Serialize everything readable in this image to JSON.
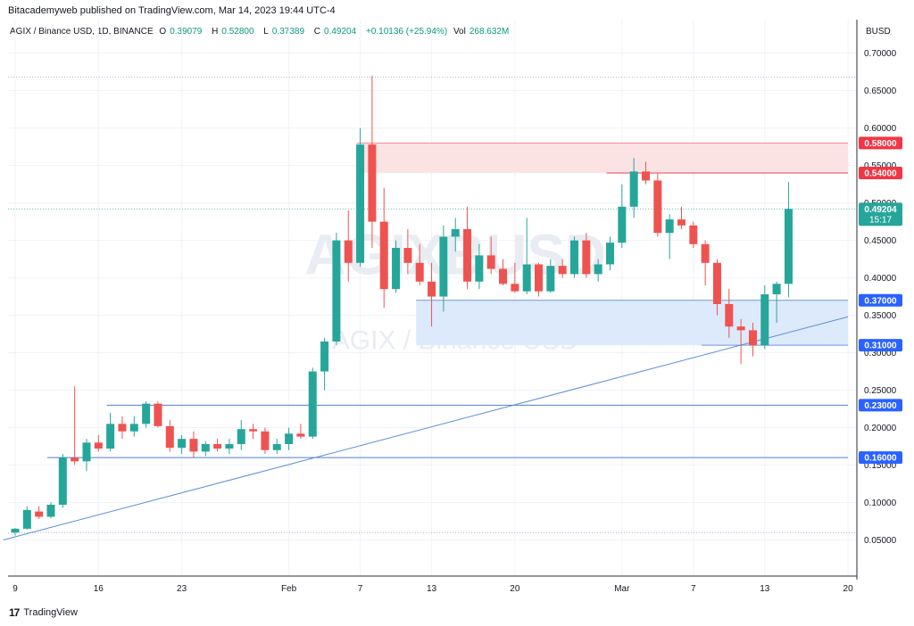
{
  "header": {
    "published": "Bitacademyweb published on TradingView.com, Mar 14, 2023 19:44 UTC-4",
    "symbol": "AGIX / Binance USD, 1D, BINANCE",
    "open_label": "O",
    "open": "0.39079",
    "high_label": "H",
    "high": "0.52800",
    "low_label": "L",
    "low": "0.37389",
    "close_label": "C",
    "close": "0.49204",
    "change": "+0.10136 (+25.94%)",
    "vol_label": "Vol",
    "vol": "268.632M"
  },
  "watermark": {
    "symbol": "AGIXBUSD",
    "name": "AGIX / Binance USD"
  },
  "footer": {
    "brand": "TradingView"
  },
  "colors": {
    "up": "#26a69a",
    "down": "#ef5350",
    "hline": "#2962ff",
    "redline": "#f23645",
    "trend": "#5b8fd6"
  },
  "chart_data": {
    "type": "candlestick",
    "currency": "BUSD",
    "ylim": [
      0.0,
      0.74
    ],
    "y_ticks": [
      "0.05000",
      "0.10000",
      "0.15000",
      "0.20000",
      "0.25000",
      "0.30000",
      "0.35000",
      "0.40000",
      "0.45000",
      "0.50000",
      "0.55000",
      "0.60000",
      "0.65000",
      "0.70000"
    ],
    "x_ticks": [
      {
        "day": 0,
        "label": "9"
      },
      {
        "day": 7,
        "label": "16"
      },
      {
        "day": 14,
        "label": "23"
      },
      {
        "day": 23,
        "label": "Feb"
      },
      {
        "day": 29,
        "label": "7"
      },
      {
        "day": 35,
        "label": "13"
      },
      {
        "day": 42,
        "label": "20"
      },
      {
        "day": 51,
        "label": "Mar"
      },
      {
        "day": 57,
        "label": "7"
      },
      {
        "day": 63,
        "label": "13"
      },
      {
        "day": 70,
        "label": "20"
      }
    ],
    "candles": [
      {
        "o": 0.06,
        "h": 0.066,
        "l": 0.056,
        "c": 0.065
      },
      {
        "o": 0.065,
        "h": 0.095,
        "l": 0.064,
        "c": 0.09
      },
      {
        "o": 0.088,
        "h": 0.095,
        "l": 0.078,
        "c": 0.081
      },
      {
        "o": 0.081,
        "h": 0.1,
        "l": 0.079,
        "c": 0.097
      },
      {
        "o": 0.097,
        "h": 0.165,
        "l": 0.093,
        "c": 0.16
      },
      {
        "o": 0.16,
        "h": 0.255,
        "l": 0.15,
        "c": 0.155
      },
      {
        "o": 0.155,
        "h": 0.185,
        "l": 0.142,
        "c": 0.18
      },
      {
        "o": 0.18,
        "h": 0.19,
        "l": 0.168,
        "c": 0.172
      },
      {
        "o": 0.172,
        "h": 0.22,
        "l": 0.168,
        "c": 0.205
      },
      {
        "o": 0.205,
        "h": 0.215,
        "l": 0.185,
        "c": 0.195
      },
      {
        "o": 0.195,
        "h": 0.215,
        "l": 0.188,
        "c": 0.205
      },
      {
        "o": 0.205,
        "h": 0.235,
        "l": 0.2,
        "c": 0.232
      },
      {
        "o": 0.232,
        "h": 0.235,
        "l": 0.2,
        "c": 0.202
      },
      {
        "o": 0.202,
        "h": 0.21,
        "l": 0.168,
        "c": 0.173
      },
      {
        "o": 0.173,
        "h": 0.19,
        "l": 0.165,
        "c": 0.185
      },
      {
        "o": 0.185,
        "h": 0.195,
        "l": 0.16,
        "c": 0.168
      },
      {
        "o": 0.168,
        "h": 0.182,
        "l": 0.162,
        "c": 0.178
      },
      {
        "o": 0.178,
        "h": 0.185,
        "l": 0.168,
        "c": 0.172
      },
      {
        "o": 0.172,
        "h": 0.185,
        "l": 0.165,
        "c": 0.178
      },
      {
        "o": 0.178,
        "h": 0.21,
        "l": 0.17,
        "c": 0.198
      },
      {
        "o": 0.198,
        "h": 0.205,
        "l": 0.185,
        "c": 0.195
      },
      {
        "o": 0.195,
        "h": 0.2,
        "l": 0.165,
        "c": 0.17
      },
      {
        "o": 0.17,
        "h": 0.185,
        "l": 0.165,
        "c": 0.178
      },
      {
        "o": 0.178,
        "h": 0.2,
        "l": 0.17,
        "c": 0.192
      },
      {
        "o": 0.192,
        "h": 0.205,
        "l": 0.185,
        "c": 0.188
      },
      {
        "o": 0.188,
        "h": 0.28,
        "l": 0.185,
        "c": 0.275
      },
      {
        "o": 0.275,
        "h": 0.32,
        "l": 0.25,
        "c": 0.315
      },
      {
        "o": 0.315,
        "h": 0.46,
        "l": 0.31,
        "c": 0.45
      },
      {
        "o": 0.45,
        "h": 0.49,
        "l": 0.395,
        "c": 0.42
      },
      {
        "o": 0.42,
        "h": 0.6,
        "l": 0.415,
        "c": 0.578
      },
      {
        "o": 0.578,
        "h": 0.67,
        "l": 0.44,
        "c": 0.475
      },
      {
        "o": 0.475,
        "h": 0.52,
        "l": 0.36,
        "c": 0.385
      },
      {
        "o": 0.385,
        "h": 0.45,
        "l": 0.38,
        "c": 0.44
      },
      {
        "o": 0.44,
        "h": 0.465,
        "l": 0.405,
        "c": 0.42
      },
      {
        "o": 0.42,
        "h": 0.445,
        "l": 0.39,
        "c": 0.395
      },
      {
        "o": 0.395,
        "h": 0.42,
        "l": 0.335,
        "c": 0.375
      },
      {
        "o": 0.375,
        "h": 0.47,
        "l": 0.355,
        "c": 0.455
      },
      {
        "o": 0.455,
        "h": 0.48,
        "l": 0.435,
        "c": 0.465
      },
      {
        "o": 0.465,
        "h": 0.495,
        "l": 0.385,
        "c": 0.395
      },
      {
        "o": 0.395,
        "h": 0.445,
        "l": 0.385,
        "c": 0.43
      },
      {
        "o": 0.43,
        "h": 0.455,
        "l": 0.405,
        "c": 0.412
      },
      {
        "o": 0.412,
        "h": 0.425,
        "l": 0.39,
        "c": 0.392
      },
      {
        "o": 0.392,
        "h": 0.42,
        "l": 0.38,
        "c": 0.382
      },
      {
        "o": 0.382,
        "h": 0.48,
        "l": 0.378,
        "c": 0.418
      },
      {
        "o": 0.418,
        "h": 0.42,
        "l": 0.375,
        "c": 0.382
      },
      {
        "o": 0.382,
        "h": 0.425,
        "l": 0.38,
        "c": 0.416
      },
      {
        "o": 0.416,
        "h": 0.425,
        "l": 0.4,
        "c": 0.405
      },
      {
        "o": 0.405,
        "h": 0.455,
        "l": 0.4,
        "c": 0.45
      },
      {
        "o": 0.45,
        "h": 0.46,
        "l": 0.4,
        "c": 0.405
      },
      {
        "o": 0.405,
        "h": 0.425,
        "l": 0.395,
        "c": 0.418
      },
      {
        "o": 0.418,
        "h": 0.455,
        "l": 0.41,
        "c": 0.447
      },
      {
        "o": 0.447,
        "h": 0.525,
        "l": 0.44,
        "c": 0.495
      },
      {
        "o": 0.495,
        "h": 0.56,
        "l": 0.48,
        "c": 0.542
      },
      {
        "o": 0.542,
        "h": 0.555,
        "l": 0.525,
        "c": 0.53
      },
      {
        "o": 0.53,
        "h": 0.54,
        "l": 0.455,
        "c": 0.46
      },
      {
        "o": 0.46,
        "h": 0.485,
        "l": 0.425,
        "c": 0.478
      },
      {
        "o": 0.478,
        "h": 0.495,
        "l": 0.465,
        "c": 0.47
      },
      {
        "o": 0.47,
        "h": 0.475,
        "l": 0.44,
        "c": 0.445
      },
      {
        "o": 0.445,
        "h": 0.45,
        "l": 0.39,
        "c": 0.42
      },
      {
        "o": 0.42,
        "h": 0.425,
        "l": 0.35,
        "c": 0.365
      },
      {
        "o": 0.365,
        "h": 0.385,
        "l": 0.32,
        "c": 0.335
      },
      {
        "o": 0.335,
        "h": 0.345,
        "l": 0.285,
        "c": 0.33
      },
      {
        "o": 0.33,
        "h": 0.34,
        "l": 0.295,
        "c": 0.31
      },
      {
        "o": 0.31,
        "h": 0.39,
        "l": 0.305,
        "c": 0.378
      },
      {
        "o": 0.378,
        "h": 0.395,
        "l": 0.34,
        "c": 0.392
      },
      {
        "o": 0.392,
        "h": 0.528,
        "l": 0.374,
        "c": 0.492
      }
    ],
    "levels": [
      {
        "label": "0.58000",
        "value": 0.58,
        "color": "#f23645",
        "style": "red"
      },
      {
        "label": "0.54000",
        "value": 0.54,
        "color": "#f23645",
        "style": "red"
      },
      {
        "label": "0.37000",
        "value": 0.37,
        "color": "#2962ff",
        "style": "blue"
      },
      {
        "label": "0.31000",
        "value": 0.31,
        "color": "#2962ff",
        "style": "blue"
      },
      {
        "label": "0.23000",
        "value": 0.23,
        "color": "#2962ff",
        "style": "blue"
      },
      {
        "label": "0.16000",
        "value": 0.16,
        "color": "#2962ff",
        "style": "blue"
      }
    ],
    "zones": [
      {
        "from_day": 29,
        "to_day": 70,
        "y_low": 0.54,
        "y_high": 0.58,
        "color": "#fbe3e4"
      },
      {
        "from_day": 34,
        "to_day": 70,
        "y_low": 0.31,
        "y_high": 0.37,
        "color": "#ddeafc"
      }
    ],
    "segments": [
      {
        "from_day": 29,
        "to_day": 70,
        "value": 0.58,
        "color": "#f08b92"
      },
      {
        "from_day": 50,
        "to_day": 70,
        "value": 0.54,
        "color": "#e04850"
      },
      {
        "from_day": 34,
        "to_day": 70,
        "value": 0.37,
        "color": "#6f95d8"
      },
      {
        "from_day": 58,
        "to_day": 70,
        "value": 0.31,
        "color": "#6f95d8"
      },
      {
        "from_day": 8,
        "to_day": 70,
        "value": 0.23,
        "color": "#4f7fd0"
      },
      {
        "from_day": 3,
        "to_day": 70,
        "value": 0.16,
        "color": "#4f7fd0"
      }
    ],
    "dotted_lines": [
      0.668,
      0.0595
    ],
    "trendline": {
      "from": {
        "day": -1,
        "value": 0.05
      },
      "to": {
        "day": 70,
        "value": 0.348
      }
    },
    "current_price": {
      "label": "0.49204",
      "countdown": "15:17",
      "value": 0.49204
    }
  }
}
